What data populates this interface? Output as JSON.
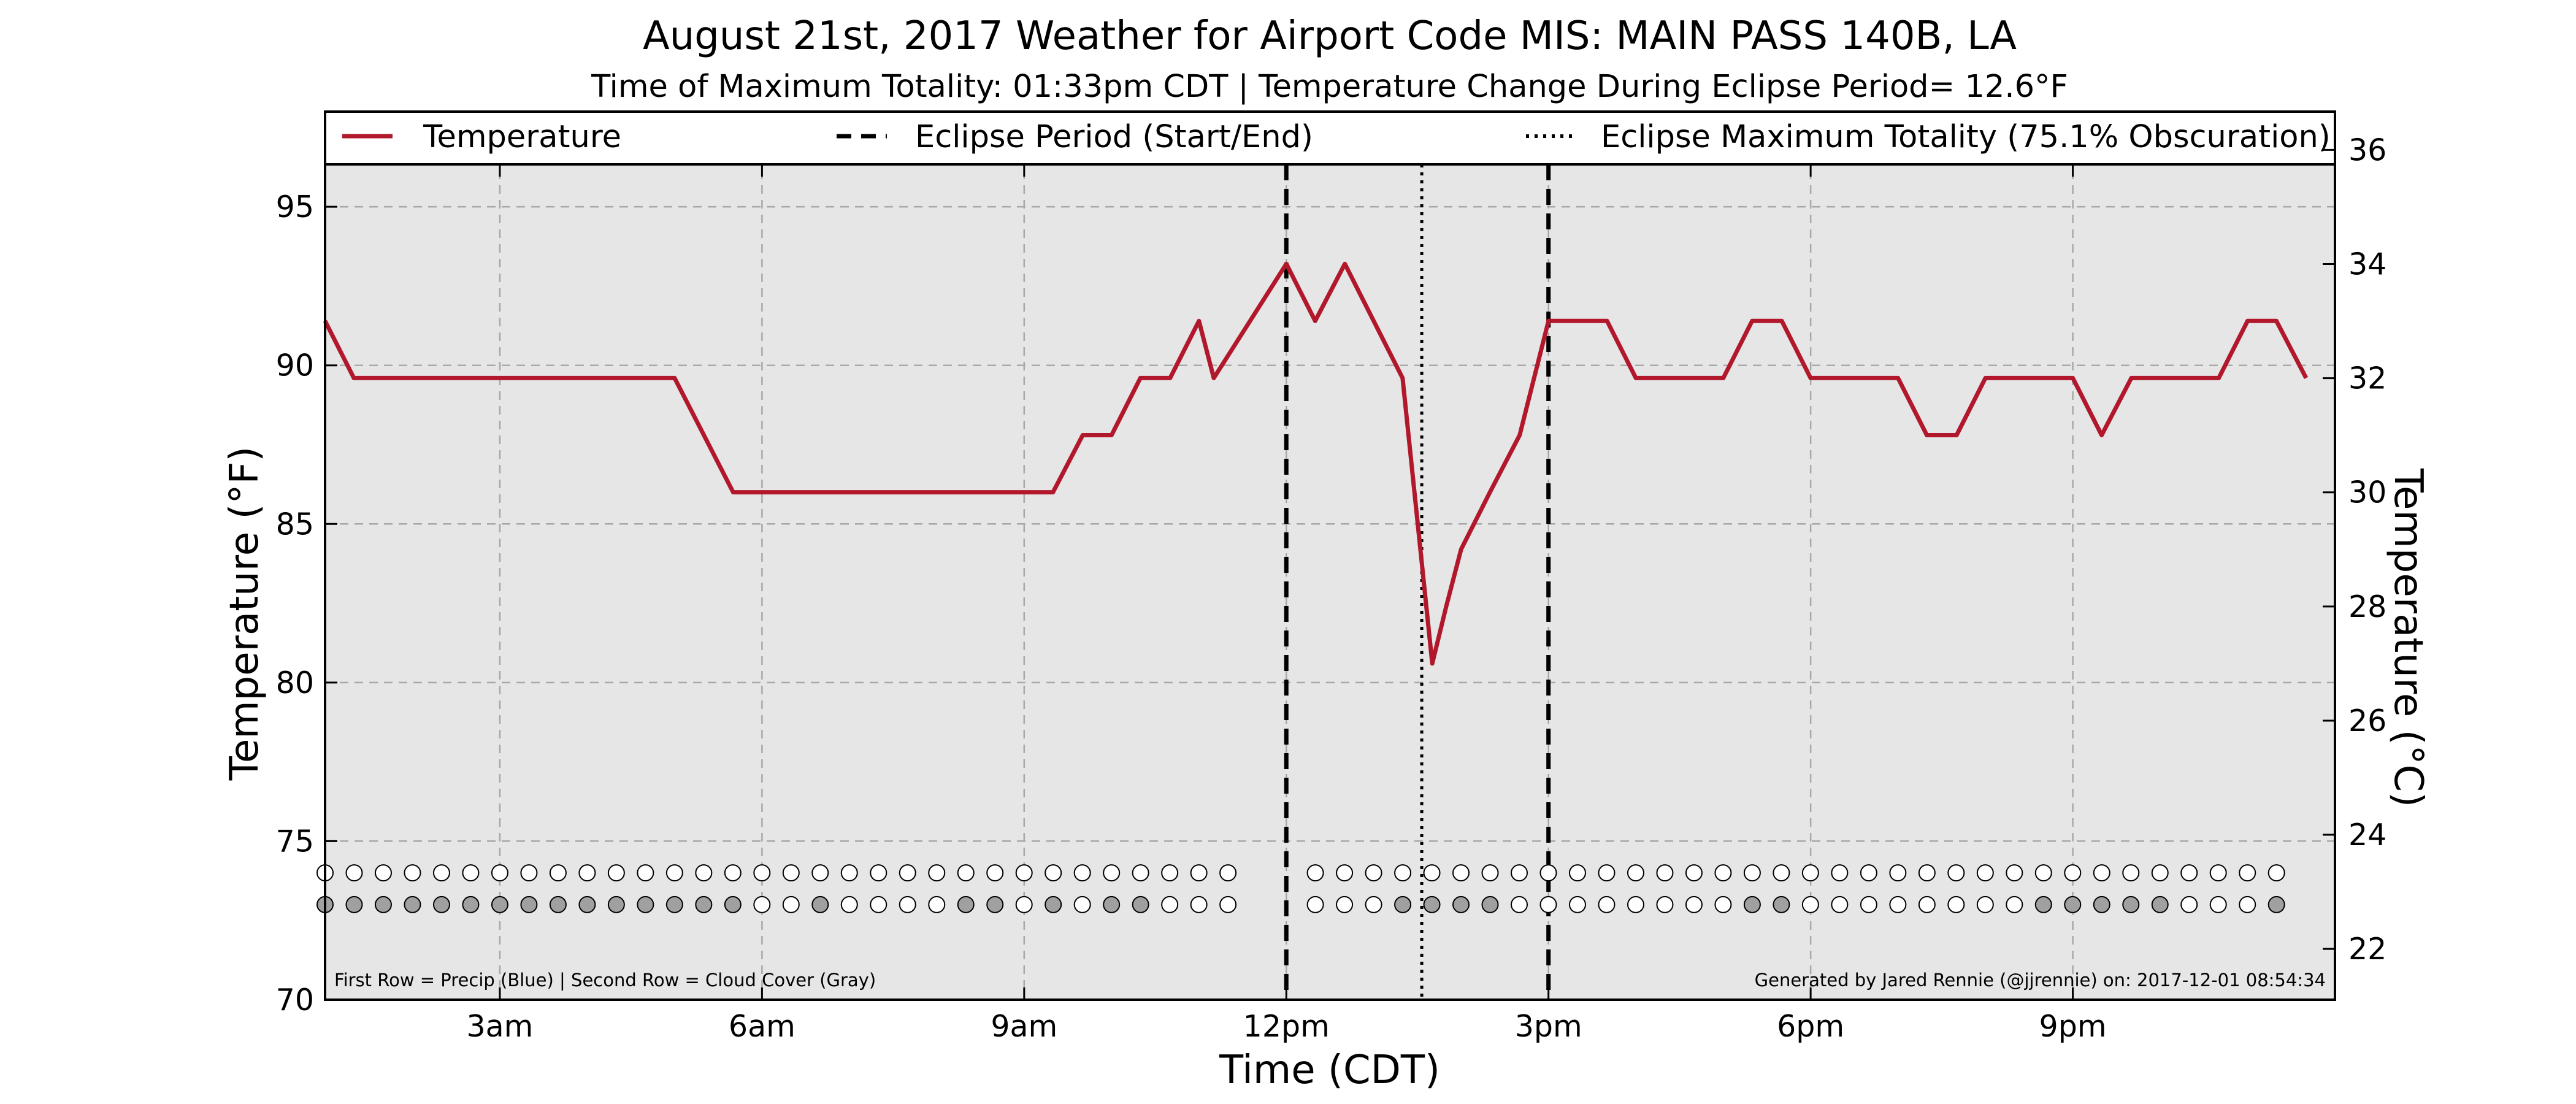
{
  "chart_data": {
    "type": "line",
    "title": "August 21st, 2017 Weather for Airport Code MIS: MAIN PASS 140B, LA",
    "subtitle": "Time of Maximum Totality: 01:33pm CDT | Temperature Change During Eclipse Period= 12.6°F",
    "xlabel": "Time (CDT)",
    "ylabel": "Temperature (°F)",
    "ylabel_right": "Temperature (°C)",
    "x_unit": "hours CDT",
    "xlim": [
      1.0,
      24.0
    ],
    "ylim": [
      70,
      98
    ],
    "ylim_right_c": [
      21.11,
      36.67
    ],
    "x_ticks": [
      {
        "value": 3,
        "label": "3am"
      },
      {
        "value": 6,
        "label": "6am"
      },
      {
        "value": 9,
        "label": "9am"
      },
      {
        "value": 12,
        "label": "12pm"
      },
      {
        "value": 15,
        "label": "3pm"
      },
      {
        "value": 18,
        "label": "6pm"
      },
      {
        "value": 21,
        "label": "9pm"
      }
    ],
    "y_ticks": [
      {
        "value": 70,
        "label": "70"
      },
      {
        "value": 75,
        "label": "75"
      },
      {
        "value": 80,
        "label": "80"
      },
      {
        "value": 85,
        "label": "85"
      },
      {
        "value": 90,
        "label": "90"
      },
      {
        "value": 95,
        "label": "95"
      }
    ],
    "y_ticks_right": [
      {
        "value": 22,
        "label": "22"
      },
      {
        "value": 24,
        "label": "24"
      },
      {
        "value": 26,
        "label": "26"
      },
      {
        "value": 28,
        "label": "28"
      },
      {
        "value": 30,
        "label": "30"
      },
      {
        "value": 32,
        "label": "32"
      },
      {
        "value": 34,
        "label": "34"
      },
      {
        "value": 36,
        "label": "36"
      }
    ],
    "grid": true,
    "legend_position": "top",
    "legend": [
      {
        "label": "Temperature",
        "style": "solid",
        "color": "#b2182b"
      },
      {
        "label": "Eclipse Period (Start/End)",
        "style": "dashed",
        "color": "#000000"
      },
      {
        "label": "Eclipse Maximum Totality (75.1% Obscuration)",
        "style": "dotted",
        "color": "#000000"
      }
    ],
    "series": [
      {
        "name": "Temperature",
        "color": "#b2182b",
        "x": [
          1.0,
          1.33,
          5.0,
          5.67,
          9.33,
          9.67,
          10.0,
          10.33,
          10.67,
          11.0,
          11.17,
          12.0,
          12.33,
          12.67,
          13.0,
          13.33,
          13.67,
          13.83,
          14.0,
          14.33,
          14.67,
          15.0,
          15.67,
          16.0,
          17.0,
          17.33,
          17.67,
          18.0,
          19.0,
          19.33,
          19.67,
          20.0,
          21.0,
          21.33,
          21.67,
          22.67,
          23.0,
          23.33,
          23.67
        ],
        "y": [
          91.4,
          89.6,
          89.6,
          86.0,
          86.0,
          87.8,
          87.8,
          89.6,
          89.6,
          91.4,
          89.6,
          93.2,
          91.4,
          93.2,
          91.4,
          89.6,
          80.6,
          82.4,
          84.2,
          86.0,
          87.8,
          91.4,
          91.4,
          89.6,
          89.6,
          91.4,
          91.4,
          89.6,
          89.6,
          87.8,
          87.8,
          89.6,
          89.6,
          87.8,
          89.6,
          89.6,
          91.4,
          91.4,
          89.6
        ]
      }
    ],
    "eclipse": {
      "start": 12.0,
      "max": 13.55,
      "end": 15.0,
      "line_color": "#000000"
    },
    "markers": {
      "start": 1.0,
      "step": 0.3333,
      "count": 68,
      "gap_indices": [
        32,
        33
      ],
      "precip_row_level": 74.0,
      "cloud_row_level": 73.0,
      "precip_color_filled": "#3b6fd4",
      "empty_color": "#ffffff",
      "cloud_color_filled": "#a0a0a0",
      "cloud_filled_indices": [
        0,
        1,
        2,
        3,
        4,
        5,
        6,
        7,
        8,
        9,
        10,
        11,
        12,
        13,
        14,
        17,
        22,
        23,
        25,
        27,
        28,
        37,
        38,
        39,
        40,
        49,
        50,
        59,
        60,
        61,
        62,
        63,
        67
      ]
    },
    "annotation_left": "First Row = Precip (Blue) | Second Row = Cloud Cover (Gray)",
    "annotation_right": "Generated by Jared Rennie (@jjrennie) on: 2017-12-01 08:54:34"
  }
}
